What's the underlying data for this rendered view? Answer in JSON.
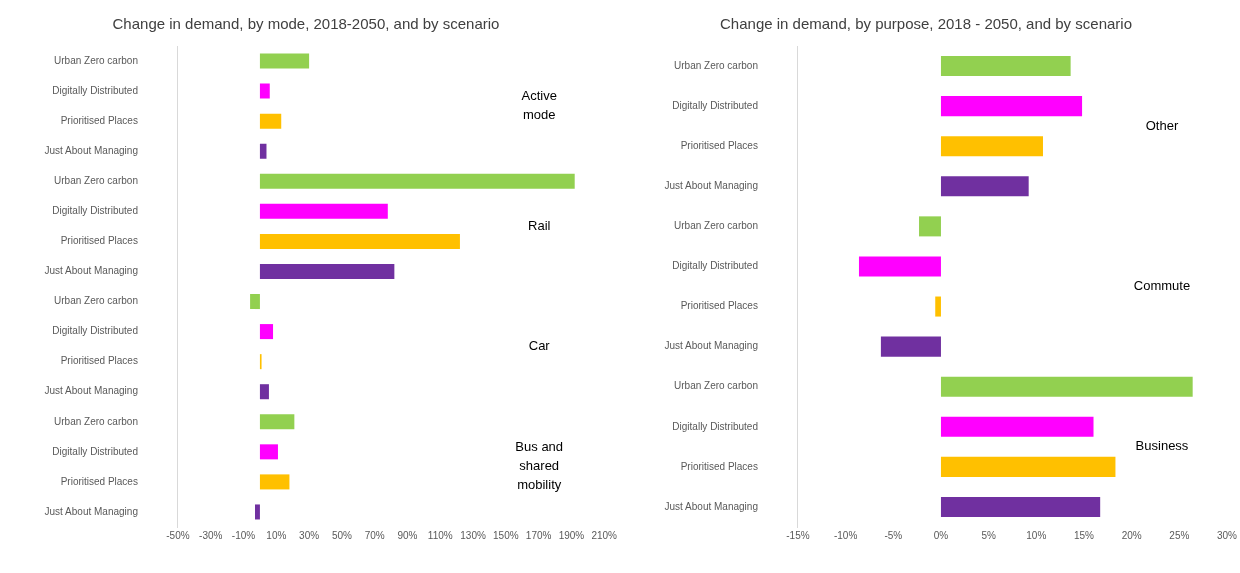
{
  "chart_data": [
    {
      "type": "bar",
      "orientation": "horizontal",
      "title": "Change in demand, by mode, 2018-2050, and by scenario",
      "categories": [
        "Urban Zero carbon",
        "Digitally Distributed",
        "Prioritised Places",
        "Just About Managing",
        "Urban Zero carbon",
        "Digitally Distributed",
        "Prioritised Places",
        "Just About Managing",
        "Urban Zero carbon",
        "Digitally Distributed",
        "Prioritised Places",
        "Just About Managing",
        "Urban Zero carbon",
        "Digitally Distributed",
        "Prioritised Places",
        "Just About Managing"
      ],
      "values": [
        30,
        6,
        13,
        4,
        192,
        78,
        122,
        82,
        -6,
        8,
        1,
        5.5,
        21,
        11,
        18,
        -3
      ],
      "colors": [
        "#92d050",
        "#ff00ff",
        "#ffc000",
        "#7030a0",
        "#92d050",
        "#ff00ff",
        "#ffc000",
        "#7030a0",
        "#92d050",
        "#ff00ff",
        "#ffc000",
        "#7030a0",
        "#92d050",
        "#ff00ff",
        "#ffc000",
        "#7030a0"
      ],
      "xlim": [
        -50,
        210
      ],
      "xticks": [
        {
          "value": -50,
          "label": "-50%"
        },
        {
          "value": -30,
          "label": "-30%"
        },
        {
          "value": -10,
          "label": "-10%"
        },
        {
          "value": 10,
          "label": "10%"
        },
        {
          "value": 30,
          "label": "30%"
        },
        {
          "value": 50,
          "label": "50%"
        },
        {
          "value": 70,
          "label": "70%"
        },
        {
          "value": 90,
          "label": "90%"
        },
        {
          "value": 110,
          "label": "110%"
        },
        {
          "value": 130,
          "label": "130%"
        },
        {
          "value": 150,
          "label": "150%"
        },
        {
          "value": 170,
          "label": "170%"
        },
        {
          "value": 190,
          "label": "190%"
        },
        {
          "value": 210,
          "label": "210%"
        }
      ],
      "annotations": [
        "Active mode",
        "Rail",
        "Car",
        "Bus and shared mobility"
      ]
    },
    {
      "type": "bar",
      "orientation": "horizontal",
      "title": "Change in demand, by purpose, 2018 - 2050, and by scenario",
      "categories": [
        "Urban Zero carbon",
        "Digitally Distributed",
        "Prioritised Places",
        "Just About Managing",
        "Urban Zero carbon",
        "Digitally Distributed",
        "Prioritised Places",
        "Just About Managing",
        "Urban Zero carbon",
        "Digitally Distributed",
        "Prioritised Places",
        "Just About Managing"
      ],
      "values": [
        13.6,
        14.8,
        10.7,
        9.2,
        -2.3,
        -8.6,
        -0.6,
        -6.3,
        26.4,
        16,
        18.3,
        16.7
      ],
      "colors": [
        "#92d050",
        "#ff00ff",
        "#ffc000",
        "#7030a0",
        "#92d050",
        "#ff00ff",
        "#ffc000",
        "#7030a0",
        "#92d050",
        "#ff00ff",
        "#ffc000",
        "#7030a0"
      ],
      "xlim": [
        -15,
        30
      ],
      "xticks": [
        {
          "value": -15,
          "label": "-15%"
        },
        {
          "value": -10,
          "label": "-10%"
        },
        {
          "value": -5,
          "label": "-5%"
        },
        {
          "value": 0,
          "label": "0%"
        },
        {
          "value": 5,
          "label": "5%"
        },
        {
          "value": 10,
          "label": "10%"
        },
        {
          "value": 15,
          "label": "15%"
        },
        {
          "value": 20,
          "label": "20%"
        },
        {
          "value": 25,
          "label": "25%"
        },
        {
          "value": 30,
          "label": "30%"
        }
      ],
      "annotations": [
        "Other",
        "Commute",
        "Business"
      ]
    }
  ]
}
